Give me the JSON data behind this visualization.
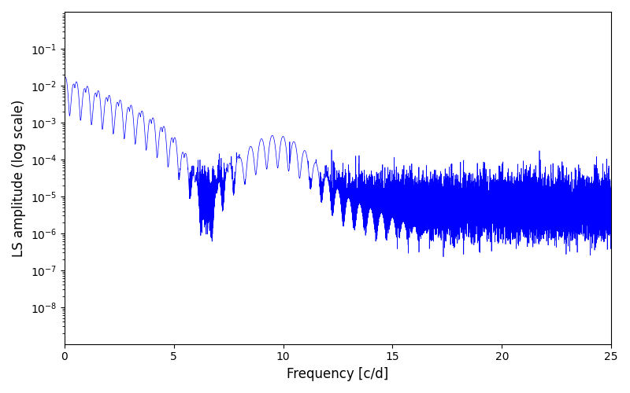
{
  "xlabel": "Frequency [c/d]",
  "ylabel": "LS amplitude (log scale)",
  "line_color": "#0000ff",
  "line_width": 0.5,
  "xlim": [
    0,
    25
  ],
  "ylim": [
    1e-09,
    1.0
  ],
  "figsize": [
    8.0,
    5.0
  ],
  "dpi": 100,
  "yticks": [
    1e-08,
    1e-07,
    1e-06,
    1e-05,
    0.0001,
    0.001,
    0.01,
    0.1
  ],
  "xticks": [
    0,
    5,
    10,
    15,
    20,
    25
  ]
}
